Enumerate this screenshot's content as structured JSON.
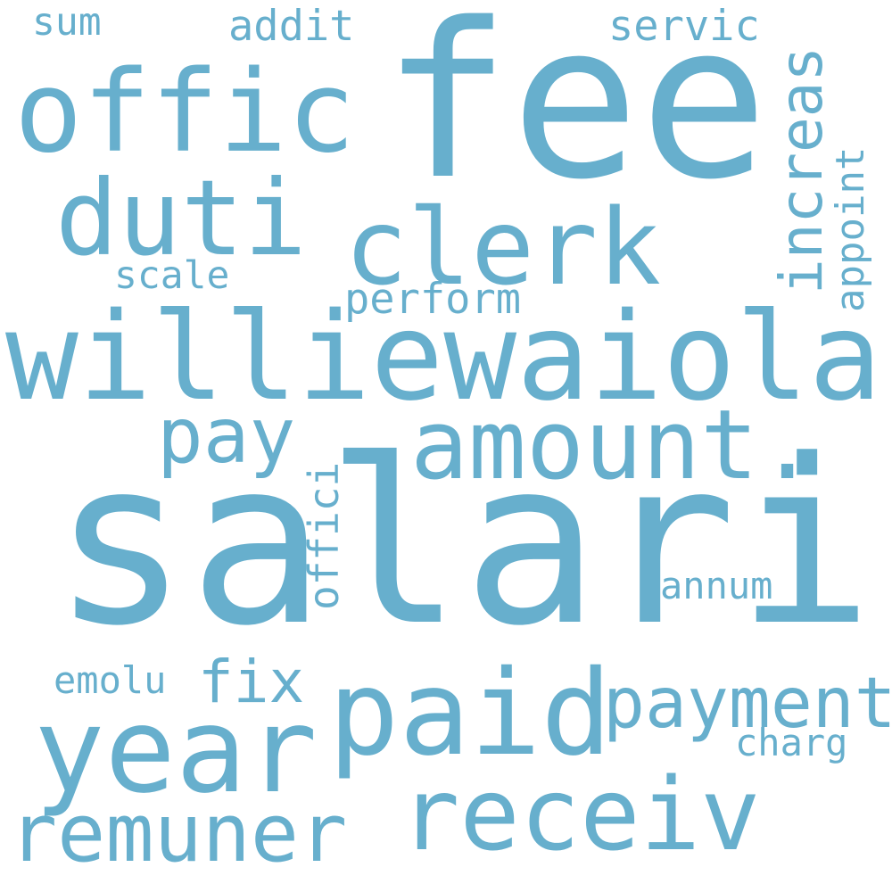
{
  "word_color": "#67afcd",
  "background": "#ffffff",
  "words": {
    "salari": "salari",
    "fee": "fee",
    "williewaiola": "williewaiola",
    "amount": "amount.",
    "paid": "paid",
    "year": "year",
    "offic": "offic",
    "clerk": "clerk",
    "duti": "duti",
    "receiv": "receiv",
    "remuner": "remuner",
    "payment": "payment",
    "pay": "pay",
    "increas": "increas",
    "fix": "fix",
    "perform": "perform",
    "scale": "scale",
    "officii": "offici",
    "appoint": "appoint",
    "servic": "servic",
    "addit": "addit",
    "sum": "sum",
    "annum": "annum",
    "emolu": "emolu",
    "charg": "charg"
  }
}
